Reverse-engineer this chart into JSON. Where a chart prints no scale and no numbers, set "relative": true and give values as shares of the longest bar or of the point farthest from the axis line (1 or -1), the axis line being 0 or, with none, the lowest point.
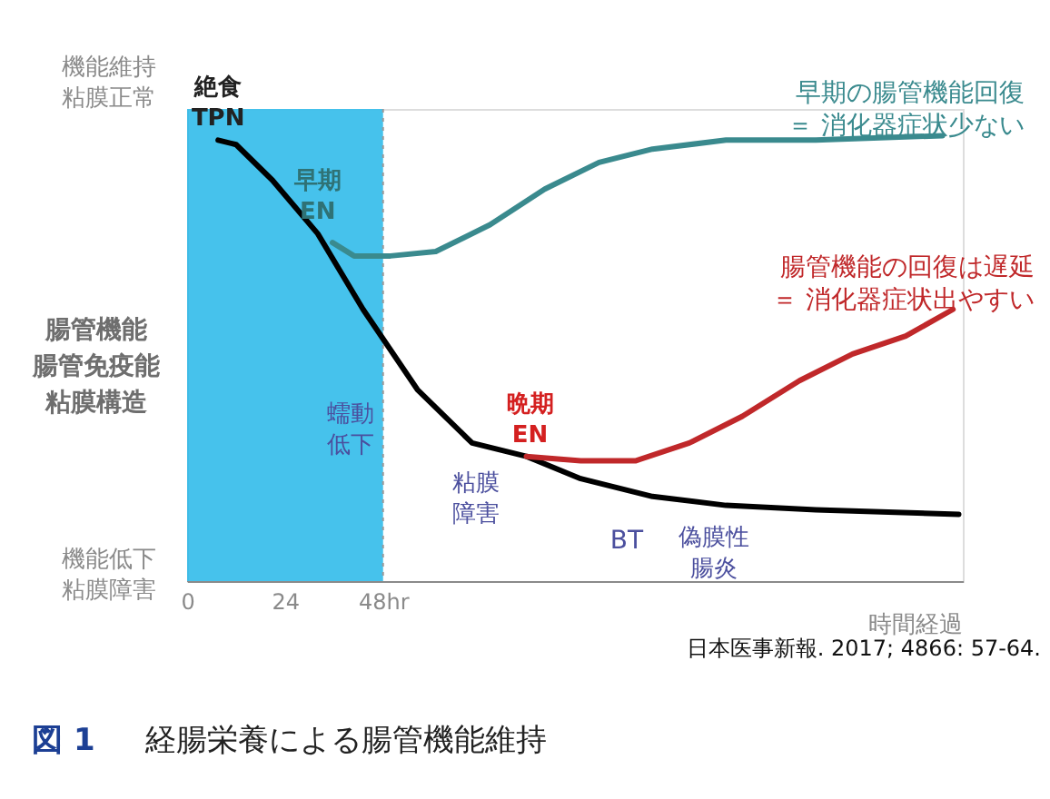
{
  "chart_data": {
    "type": "line",
    "relative": true,
    "title": "経腸栄養による腸管機能維持",
    "xlabel": "時間経過",
    "ylabel": "腸管機能腸管免疫能粘膜構造",
    "xlim": [
      0,
      190
    ],
    "xticks": [
      0,
      24,
      {
        "value": 48,
        "label": "48hr"
      }
    ],
    "series": [
      {
        "color": "#000000",
        "x": [
          7.6,
          12,
          20.9,
          32,
          43.1,
          56.4,
          69.8,
          83.1,
          96.4,
          114,
          132,
          154,
          189
        ],
        "values": [
          0.99,
          0.98,
          0.9,
          0.78,
          0.61,
          0.43,
          0.31,
          0.28,
          0.23,
          0.19,
          0.17,
          0.16,
          0.15
        ]
      },
      {
        "name": "早期の腸管機能回復＝ 消化器症状少ない",
        "color": "#3a8a8e",
        "x": [
          35.6,
          40.9,
          49.8,
          60.9,
          74.2,
          87.6,
          100.9,
          114,
          132,
          154,
          185
        ],
        "values": [
          0.76,
          0.73,
          0.73,
          0.74,
          0.8,
          0.88,
          0.94,
          0.97,
          0.99,
          0.99,
          1.0
        ]
      },
      {
        "name": "腸管機能の回復は遅延＝ 消化器症状出やすい",
        "color": "#c0282a",
        "x": [
          83.1,
          96.4,
          109.8,
          123,
          136,
          150,
          163,
          176,
          187.6
        ],
        "values": [
          0.28,
          0.27,
          0.27,
          0.31,
          0.37,
          0.45,
          0.51,
          0.55,
          0.61
        ]
      }
    ],
    "bands": [
      {
        "axis": "x",
        "from": 0,
        "to": 48,
        "color": "#3cbfeb"
      }
    ],
    "ref_lines": [
      {
        "axis": "x",
        "value": 48,
        "color": "#9a9a9a",
        "line_style": "dotted"
      }
    ],
    "annotations": [
      {
        "text": "絶食TPN",
        "x": 7.6,
        "y": 0.99
      },
      {
        "text": "早期EN",
        "x": 32,
        "y": 0.78
      },
      {
        "text": "晩期EN",
        "x": 84,
        "y": 0.28
      },
      "機能維持粘膜正常",
      "機能低下粘膜障害",
      "蠕動低下",
      "粘膜障害",
      "BT",
      "偽膜性腸炎",
      "図 1",
      "日本医事新報. 2017; 4866: 57-64."
    ]
  }
}
